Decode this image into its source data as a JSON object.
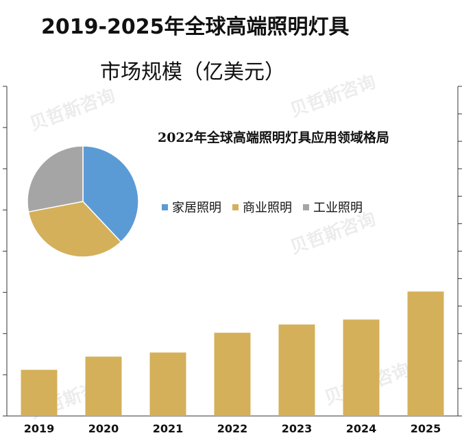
{
  "title": {
    "line1": "2019-2025年全球高端照明灯具",
    "line2": "市场规模（亿美元）"
  },
  "watermark_text": "贝哲斯咨询",
  "chart_data": [
    {
      "type": "bar",
      "categories": [
        "2019",
        "2020",
        "2021",
        "2022",
        "2023",
        "2024",
        "2025"
      ],
      "values": [
        56,
        72,
        77,
        101,
        111,
        117,
        151
      ],
      "ylim": [
        0,
        400
      ],
      "color": "#D4B05A",
      "grid": false,
      "left_axis_ticks": 8,
      "right_axis_ticks": 12
    },
    {
      "type": "pie",
      "title": "2022年全球高端照明灯具应用领域格局",
      "labels": [
        "家居照明",
        "商业照明",
        "工业照明"
      ],
      "values": [
        38,
        34,
        28
      ],
      "colors": [
        "#5B9BD5",
        "#D4B05A",
        "#A5A5A5"
      ],
      "legend_position": "right"
    }
  ]
}
